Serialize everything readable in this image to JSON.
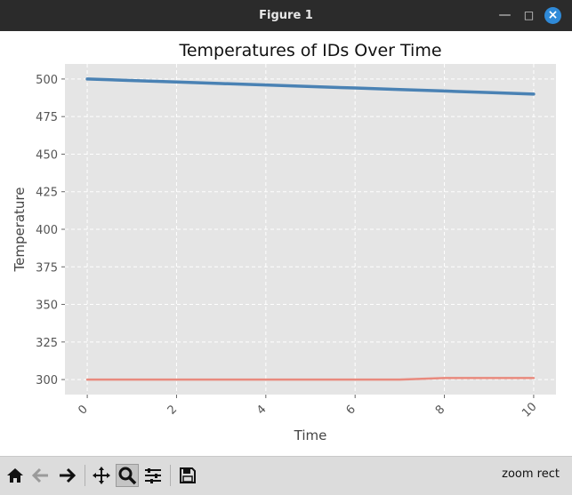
{
  "window": {
    "title": "Figure 1",
    "controls": {
      "minimize_icon": "minimize-icon",
      "maximize_icon": "maximize-icon",
      "close_icon": "close-icon"
    }
  },
  "toolbar": {
    "buttons": [
      "home-icon",
      "back-arrow-icon",
      "forward-arrow-icon",
      "pan-icon",
      "zoom-icon",
      "configure-subplots-icon",
      "save-icon"
    ],
    "status": "zoom rect"
  },
  "colors": {
    "plot_background": "#e5e5e5",
    "series_blue": "#4a82b4",
    "series_red": "#e98a7e",
    "grid": "#ffffff",
    "titlebar": "#2b2b2b",
    "close_button": "#2f8ad8"
  },
  "chart_data": {
    "type": "line",
    "title": "Temperatures of IDs Over Time",
    "xlabel": "Time",
    "ylabel": "Temperature",
    "xlim": [
      -0.5,
      10.5
    ],
    "ylim": [
      290,
      510
    ],
    "xticks": [
      0,
      2,
      4,
      6,
      8,
      10
    ],
    "yticks": [
      300,
      325,
      350,
      375,
      400,
      425,
      450,
      475,
      500
    ],
    "grid": true,
    "series": [
      {
        "color": "#4a82b4",
        "x": [
          0,
          1,
          2,
          3,
          4,
          5,
          6,
          7,
          8,
          9,
          10
        ],
        "y": [
          500,
          499,
          498,
          497,
          496,
          495,
          494,
          493,
          492,
          491,
          490
        ]
      },
      {
        "color": "#e98a7e",
        "x": [
          0,
          1,
          2,
          3,
          4,
          5,
          6,
          7,
          8,
          9,
          10
        ],
        "y": [
          300,
          300,
          300,
          300,
          300,
          300,
          300,
          300,
          301,
          301,
          301
        ]
      }
    ]
  }
}
